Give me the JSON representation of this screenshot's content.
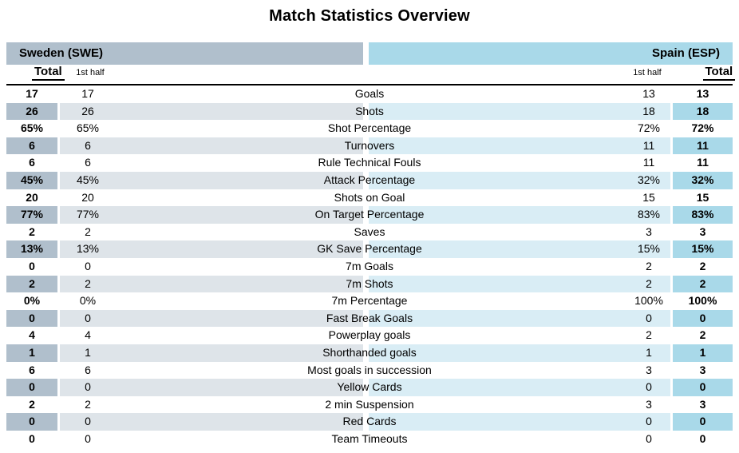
{
  "title": "Match Statistics Overview",
  "teams": {
    "home": {
      "name": "Sweden (SWE)",
      "color": "#b0bfcc",
      "row_tint": "#dee4e9"
    },
    "away": {
      "name": "Spain (ESP)",
      "color": "#a9d9e9",
      "row_tint": "#d9edf5"
    }
  },
  "columns": {
    "total": "Total",
    "first_half": "1st half"
  },
  "rows": [
    {
      "label": "Goals",
      "home_total": "17",
      "home_half": "17",
      "away_half": "13",
      "away_total": "13"
    },
    {
      "label": "Shots",
      "home_total": "26",
      "home_half": "26",
      "away_half": "18",
      "away_total": "18"
    },
    {
      "label": "Shot Percentage",
      "home_total": "65%",
      "home_half": "65%",
      "away_half": "72%",
      "away_total": "72%"
    },
    {
      "label": "Turnovers",
      "home_total": "6",
      "home_half": "6",
      "away_half": "11",
      "away_total": "11"
    },
    {
      "label": "Rule Technical Fouls",
      "home_total": "6",
      "home_half": "6",
      "away_half": "11",
      "away_total": "11"
    },
    {
      "label": "Attack Percentage",
      "home_total": "45%",
      "home_half": "45%",
      "away_half": "32%",
      "away_total": "32%"
    },
    {
      "label": "Shots on Goal",
      "home_total": "20",
      "home_half": "20",
      "away_half": "15",
      "away_total": "15"
    },
    {
      "label": "On Target Percentage",
      "home_total": "77%",
      "home_half": "77%",
      "away_half": "83%",
      "away_total": "83%"
    },
    {
      "label": "Saves",
      "home_total": "2",
      "home_half": "2",
      "away_half": "3",
      "away_total": "3"
    },
    {
      "label": "GK Save Percentage",
      "home_total": "13%",
      "home_half": "13%",
      "away_half": "15%",
      "away_total": "15%"
    },
    {
      "label": "7m Goals",
      "home_total": "0",
      "home_half": "0",
      "away_half": "2",
      "away_total": "2"
    },
    {
      "label": "7m Shots",
      "home_total": "2",
      "home_half": "2",
      "away_half": "2",
      "away_total": "2"
    },
    {
      "label": "7m Percentage",
      "home_total": "0%",
      "home_half": "0%",
      "away_half": "100%",
      "away_total": "100%"
    },
    {
      "label": "Fast Break Goals",
      "home_total": "0",
      "home_half": "0",
      "away_half": "0",
      "away_total": "0"
    },
    {
      "label": "Powerplay goals",
      "home_total": "4",
      "home_half": "4",
      "away_half": "2",
      "away_total": "2"
    },
    {
      "label": "Shorthanded goals",
      "home_total": "1",
      "home_half": "1",
      "away_half": "1",
      "away_total": "1"
    },
    {
      "label": "Most goals in succession",
      "home_total": "6",
      "home_half": "6",
      "away_half": "3",
      "away_total": "3"
    },
    {
      "label": "Yellow Cards",
      "home_total": "0",
      "home_half": "0",
      "away_half": "0",
      "away_total": "0"
    },
    {
      "label": "2 min Suspension",
      "home_total": "2",
      "home_half": "2",
      "away_half": "3",
      "away_total": "3"
    },
    {
      "label": "Red Cards",
      "home_total": "0",
      "home_half": "0",
      "away_half": "0",
      "away_total": "0"
    },
    {
      "label": "Team Timeouts",
      "home_total": "0",
      "home_half": "0",
      "away_half": "0",
      "away_total": "0"
    }
  ]
}
